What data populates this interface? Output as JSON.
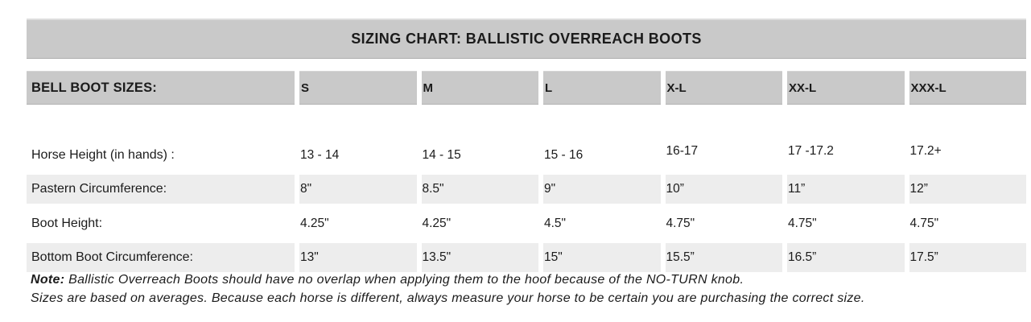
{
  "title": "SIZING CHART: BALLISTIC OVERREACH BOOTS",
  "table": {
    "header": {
      "label": "BELL BOOT SIZES:",
      "sizes": [
        "S",
        "M",
        "L",
        "X-L",
        "XX-L",
        "XXX-L"
      ]
    },
    "rows": [
      {
        "label": "Horse Height (in hands) :",
        "values": [
          "13 - 14",
          "14 - 15",
          "15 - 16",
          "16-17",
          "17 -17.2",
          "17.2+"
        ]
      },
      {
        "label": "Pastern Circumference:",
        "values": [
          "8\"",
          "8.5\"",
          "9\"",
          "10”",
          "11”",
          "12”"
        ]
      },
      {
        "label": "Boot Height:",
        "values": [
          "4.25\"",
          "4.25\"",
          "4.5\"",
          "4.75\"",
          "4.75\"",
          "4.75\""
        ]
      },
      {
        "label": "Bottom Boot Circumference:",
        "values": [
          "13\"",
          "13.5\"",
          "15\"",
          "15.5”",
          "16.5”",
          "17.5”"
        ]
      }
    ]
  },
  "note": {
    "label": "Note:",
    "line1": "Ballistic Overreach Boots should have no overlap when applying them to the hoof because of the NO-TURN knob.",
    "line2": "Sizes are based on averages. Because each horse is different, always measure your horse to be certain you are purchasing the correct size."
  },
  "colors": {
    "header_bg": "#c9c9c9",
    "stripe_bg": "#ededed",
    "text": "#1b1b1b"
  }
}
